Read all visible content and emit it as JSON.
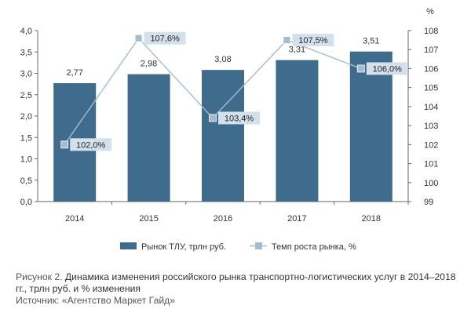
{
  "chart_data": {
    "type": "bar",
    "categories": [
      "2014",
      "2015",
      "2016",
      "2017",
      "2018"
    ],
    "series": [
      {
        "name": "Рынок ТЛУ, трлн руб.",
        "type": "bar",
        "axis": "left",
        "values": [
          2.77,
          2.98,
          3.08,
          3.31,
          3.51
        ],
        "labels": [
          "2,77",
          "2,98",
          "3,08",
          "3,31",
          "3,51"
        ],
        "color": "#3f6b8c"
      },
      {
        "name": "Темп роста рынка, %",
        "type": "line",
        "axis": "right",
        "values": [
          102.0,
          107.6,
          103.4,
          107.5,
          106.0
        ],
        "labels": [
          "102,0%",
          "107,6%",
          "103,4%",
          "107,5%",
          "106,0%"
        ],
        "color": "#a3bccf"
      }
    ],
    "left_axis": {
      "range": [
        0,
        4
      ],
      "ticks": [
        "0,0",
        "0,5",
        "1,0",
        "1,5",
        "2,0",
        "2,5",
        "3,0",
        "3,5",
        "4,0"
      ]
    },
    "right_axis": {
      "unit": "%",
      "range": [
        99,
        108
      ],
      "ticks": [
        "99",
        "100",
        "101",
        "102",
        "103",
        "104",
        "105",
        "106",
        "107",
        "108"
      ]
    },
    "grid": false,
    "legend_position": "bottom"
  },
  "caption": {
    "prefix": "Рисунок 2.",
    "text": "Динамика изменения российского рынка транспортно-логистических услуг в 2014–2018 гг., трлн руб. и % изменения",
    "source": "Источник: «Агентство Маркет Гайд»"
  }
}
